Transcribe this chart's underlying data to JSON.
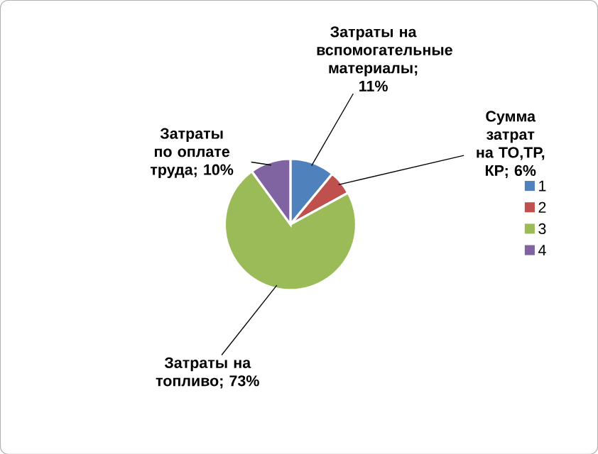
{
  "chart_data": {
    "type": "pie",
    "categories": [
      "1",
      "2",
      "3",
      "4"
    ],
    "values": [
      11,
      6,
      73,
      10
    ],
    "colors": [
      "#4f81bd",
      "#c0504d",
      "#9bbb59",
      "#8064a2"
    ],
    "value_labels": [
      "Затраты на вспомогательные материалы; 11%",
      "Сумма затрат на ТО,ТР, КР; 6%",
      "Затраты на топливо; 73%",
      "Затраты по оплате труда; 10%"
    ],
    "legend": "right"
  }
}
